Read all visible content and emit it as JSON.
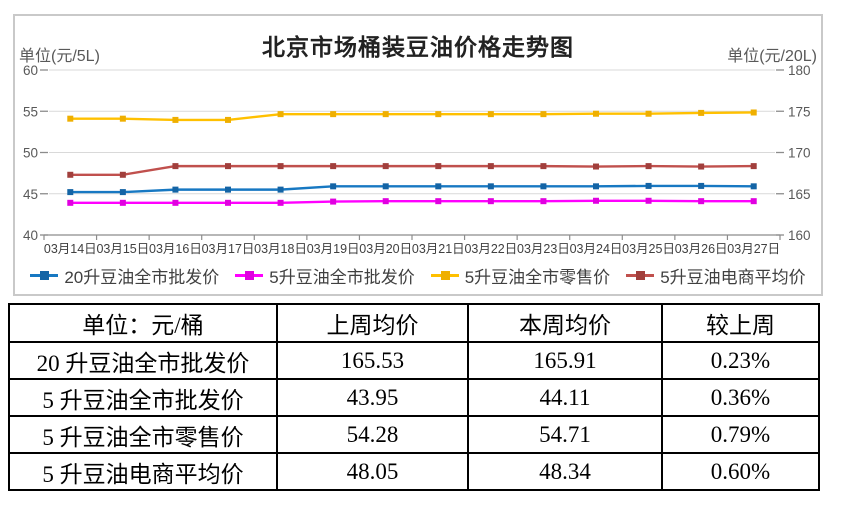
{
  "chart": {
    "title": "北京市场桶装豆油价格走势图",
    "unit_left": "单位(元/5L)",
    "unit_right": "单位(元/20L)"
  },
  "chart_data": {
    "type": "line",
    "title": "北京市场桶装豆油价格走势图",
    "x": [
      "03月14日",
      "03月15日",
      "03月16日",
      "03月17日",
      "03月18日",
      "03月19日",
      "03月20日",
      "03月21日",
      "03月22日",
      "03月23日",
      "03月24日",
      "03月25日",
      "03月26日",
      "03月27日"
    ],
    "left_axis": {
      "unit": "单位(元/5L)",
      "min": 40,
      "max": 60,
      "ticks": [
        60,
        55,
        50,
        45,
        40
      ]
    },
    "right_axis": {
      "unit": "单位(元/20L)",
      "min": 160,
      "max": 180,
      "ticks": [
        180,
        175,
        170,
        165,
        160
      ]
    },
    "grid": true,
    "legend_position": "bottom",
    "series": [
      {
        "name": "20升豆油全市批发价",
        "color": "#1778C2",
        "marker_color": "#1464A5",
        "axis": "right",
        "values": [
          165.2,
          165.2,
          165.5,
          165.5,
          165.5,
          165.9,
          165.9,
          165.9,
          165.9,
          165.9,
          165.9,
          165.95,
          165.95,
          165.9
        ]
      },
      {
        "name": "5升豆油全市批发价",
        "color": "#FF00FF",
        "marker_color": "#E000E0",
        "axis": "left",
        "values": [
          43.9,
          43.9,
          43.9,
          43.9,
          43.9,
          44.05,
          44.1,
          44.1,
          44.1,
          44.1,
          44.15,
          44.15,
          44.1,
          44.1
        ]
      },
      {
        "name": "5升豆油全市零售价",
        "color": "#FFC000",
        "marker_color": "#EFAF00",
        "axis": "left",
        "values": [
          54.1,
          54.1,
          53.95,
          53.95,
          54.65,
          54.65,
          54.65,
          54.65,
          54.65,
          54.65,
          54.7,
          54.7,
          54.8,
          54.85
        ]
      },
      {
        "name": "5升豆油电商平均价",
        "color": "#C0504D",
        "marker_color": "#A13F3C",
        "axis": "left",
        "values": [
          47.3,
          47.3,
          48.35,
          48.35,
          48.35,
          48.35,
          48.35,
          48.35,
          48.35,
          48.35,
          48.3,
          48.35,
          48.3,
          48.35
        ]
      }
    ]
  },
  "table": {
    "headers": [
      "单位：元/桶",
      "上周均价",
      "本周均价",
      "较上周"
    ],
    "rows": [
      [
        "20 升豆油全市批发价",
        "165.53",
        "165.91",
        "0.23%"
      ],
      [
        "5 升豆油全市批发价",
        "43.95",
        "44.11",
        "0.36%"
      ],
      [
        "5 升豆油全市零售价",
        "54.28",
        "54.71",
        "0.79%"
      ],
      [
        "5 升豆油电商平均价",
        "48.05",
        "48.34",
        "0.60%"
      ]
    ]
  },
  "colors": {
    "grid": "#D9D9D9",
    "axis": "#8C8C8C",
    "axis_text": "#595959",
    "date_text": "#404040",
    "panel_border": "#C9C9C9",
    "table_border": "#000000"
  }
}
